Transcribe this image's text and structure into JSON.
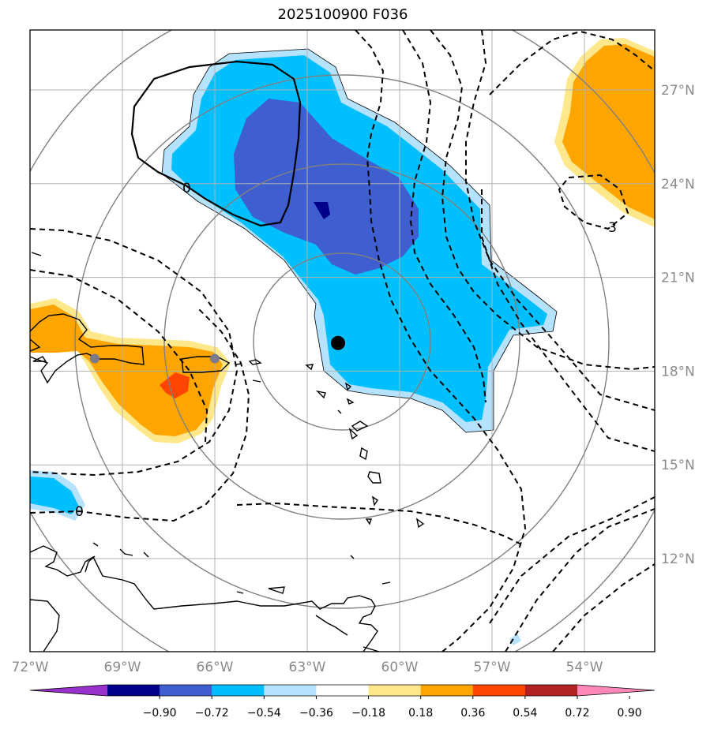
{
  "title": "2025100900 F036",
  "map": {
    "lon_range": [
      -72,
      -52.5
    ],
    "lat_range": [
      9,
      29
    ],
    "lon_ticks": [
      {
        "lon": -72,
        "label": "72°W"
      },
      {
        "lon": -69,
        "label": "69°W"
      },
      {
        "lon": -66,
        "label": "66°W"
      },
      {
        "lon": -63,
        "label": "63°W"
      },
      {
        "lon": -60,
        "label": "60°W"
      },
      {
        "lon": -57,
        "label": "57°W"
      },
      {
        "lon": -54,
        "label": "54°W"
      }
    ],
    "lat_ticks": [
      {
        "lat": 27,
        "label": "27°N"
      },
      {
        "lat": 24,
        "label": "24°N"
      },
      {
        "lat": 21,
        "label": "21°N"
      },
      {
        "lat": 18,
        "label": "18°N"
      },
      {
        "lat": 15,
        "label": "15°N"
      },
      {
        "lat": 12,
        "label": "12°N"
      }
    ],
    "gridlines": true,
    "center_marker": {
      "lon": -62.0,
      "lat": 18.9
    },
    "gray_markers": [
      {
        "lon": -69.9,
        "lat": 18.4
      },
      {
        "lon": -66.0,
        "lat": 18.4
      }
    ],
    "contour_labels": [
      "0",
      "0",
      "-3"
    ]
  },
  "colorbar": {
    "labels": [
      "−0.90",
      "−0.72",
      "−0.54",
      "−0.36",
      "−0.18",
      "0.18",
      "0.36",
      "0.54",
      "0.72",
      "0.90"
    ],
    "colors": [
      "#9932cc",
      "#00008b",
      "#3f5fd0",
      "#00bfff",
      "#b4e2ff",
      "#ffffff",
      "#ffe88c",
      "#ffa500",
      "#ff4500",
      "#b22222",
      "#ff88b8"
    ]
  }
}
